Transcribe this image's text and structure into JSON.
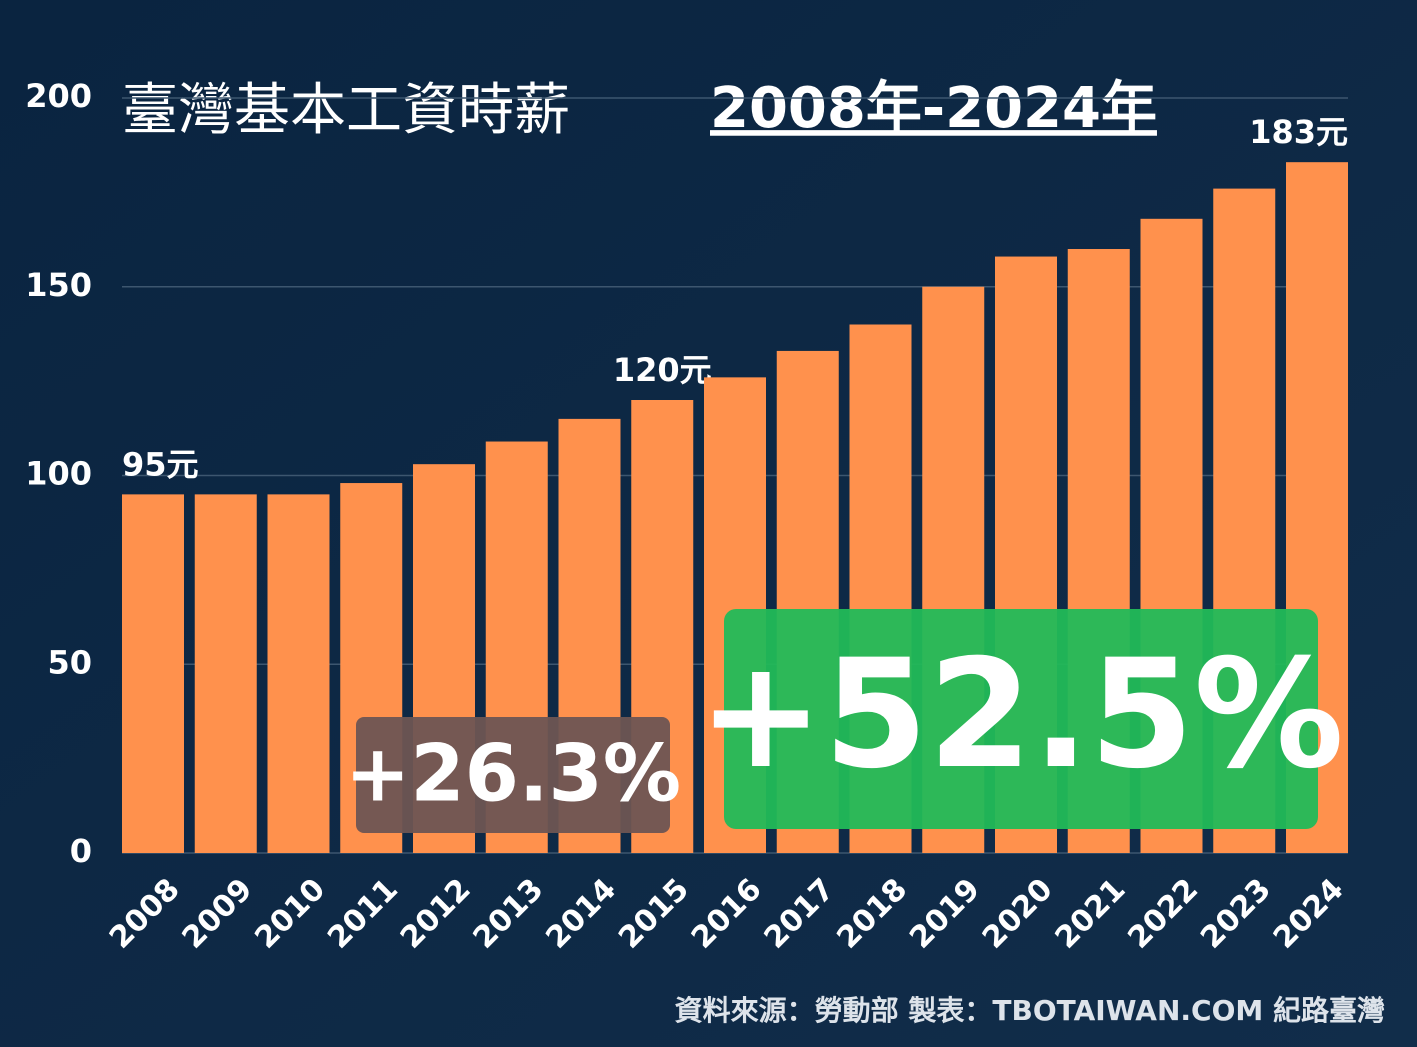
{
  "chart_data": {
    "type": "bar",
    "title": "臺灣基本工資時薪",
    "subtitle": "2008年-2024年",
    "categories": [
      "2008",
      "2009",
      "2010",
      "2011",
      "2012",
      "2013",
      "2014",
      "2015",
      "2016",
      "2017",
      "2018",
      "2019",
      "2020",
      "2021",
      "2022",
      "2023",
      "2024"
    ],
    "values": [
      95,
      95,
      95,
      98,
      103,
      109,
      115,
      120,
      126,
      133,
      140,
      150,
      158,
      160,
      168,
      176,
      183
    ],
    "value_labels": [
      "95元",
      null,
      null,
      null,
      null,
      null,
      null,
      "120元",
      null,
      null,
      null,
      null,
      null,
      null,
      null,
      null,
      "183元"
    ],
    "color": "#ff914d",
    "ylim": [
      0,
      200
    ],
    "yticks": [
      0,
      50,
      100,
      150,
      200
    ],
    "grid": true,
    "annotations": [
      "+26.3%",
      "+52.5%"
    ],
    "source": "資料來源：勞動部  製表：TBOTAIWAN.COM 紀路臺灣"
  }
}
